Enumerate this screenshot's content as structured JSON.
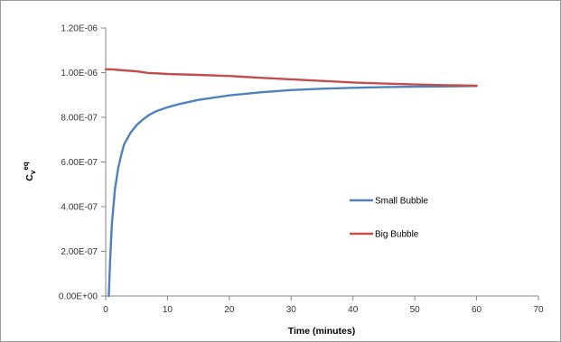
{
  "chart_data": {
    "type": "line",
    "title": "",
    "xlabel": "Time (minutes)",
    "ylabel_main": "C",
    "ylabel_sub": "v",
    "ylabel_sup": "eq",
    "xlim": [
      0,
      70
    ],
    "ylim": [
      0,
      1.2e-06
    ],
    "x_ticks": [
      0,
      10,
      20,
      30,
      40,
      50,
      60,
      70
    ],
    "x_tick_labels": [
      "0",
      "10",
      "20",
      "30",
      "40",
      "50",
      "60",
      "70"
    ],
    "y_ticks": [
      0,
      2e-07,
      4e-07,
      6e-07,
      8e-07,
      1e-06,
      1.2e-06
    ],
    "y_tick_labels": [
      "0.00E+00",
      "2.00E-07",
      "4.00E-07",
      "6.00E-07",
      "8.00E-07",
      "1.00E-06",
      "1.20E-06"
    ],
    "grid": false,
    "legend_position": "center-right",
    "series": [
      {
        "name": "Small Bubble",
        "color": "#4f81bd",
        "x": [
          0.5,
          0.7,
          1,
          1.5,
          2,
          2.5,
          3,
          4,
          5,
          6,
          7,
          8,
          10,
          12,
          15,
          20,
          25,
          30,
          35,
          40,
          45,
          50,
          55,
          60
        ],
        "y": [
          0,
          1.5e-07,
          3.2e-07,
          4.8e-07,
          5.7e-07,
          6.3e-07,
          6.8e-07,
          7.3e-07,
          7.65e-07,
          7.9e-07,
          8.1e-07,
          8.25e-07,
          8.45e-07,
          8.6e-07,
          8.78e-07,
          8.98e-07,
          9.12e-07,
          9.22e-07,
          9.28e-07,
          9.32e-07,
          9.35e-07,
          9.37e-07,
          9.38e-07,
          9.4e-07
        ]
      },
      {
        "name": "Big Bubble",
        "color": "#c0504d",
        "x": [
          0,
          1,
          2,
          3,
          4,
          5,
          6,
          7,
          8,
          10,
          15,
          20,
          22,
          25,
          30,
          35,
          40,
          45,
          50,
          55,
          60
        ],
        "y": [
          1.015e-06,
          1.015e-06,
          1.012e-06,
          1.01e-06,
          1.008e-06,
          1.006e-06,
          1.002e-06,
          9.98e-07,
          9.97e-07,
          9.94e-07,
          9.9e-07,
          9.85e-07,
          9.82e-07,
          9.77e-07,
          9.7e-07,
          9.63e-07,
          9.56e-07,
          9.51e-07,
          9.47e-07,
          9.44e-07,
          9.42e-07
        ]
      }
    ]
  }
}
